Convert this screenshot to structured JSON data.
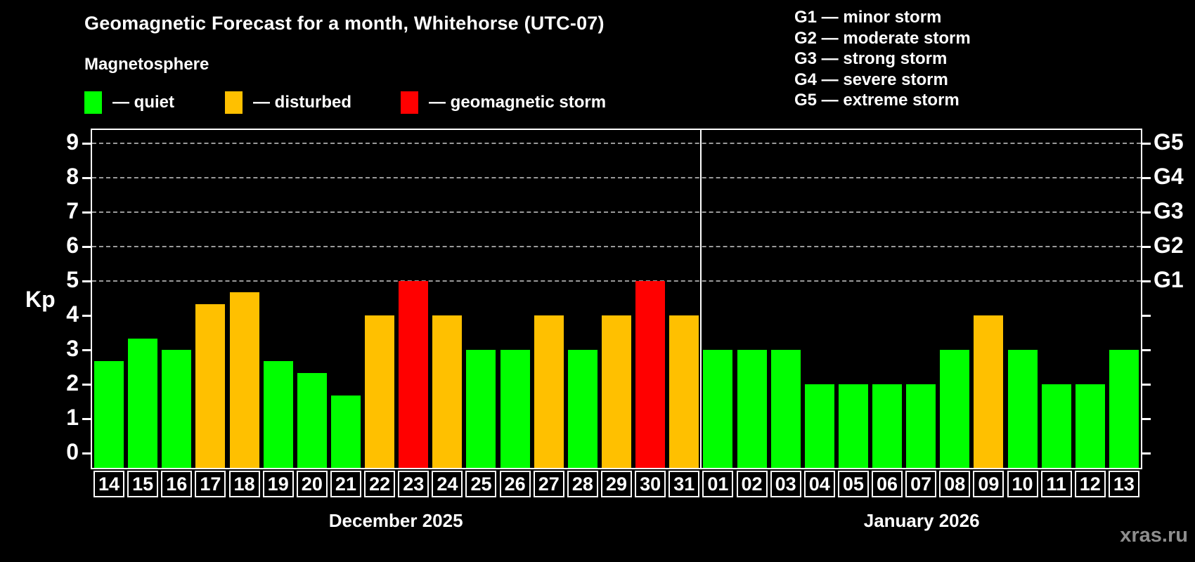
{
  "header": {
    "title": "Geomagnetic Forecast for a month, Whitehorse (UTC-07)",
    "subtitle": "Magnetosphere",
    "legend": [
      {
        "status": "quiet",
        "label": "— quiet"
      },
      {
        "status": "disturbed",
        "label": "— disturbed"
      },
      {
        "status": "storm",
        "label": "— geomagnetic storm"
      }
    ],
    "g_legend": [
      "G1 — minor storm",
      "G2 — moderate storm",
      "G3 — strong storm",
      "G4 — severe storm",
      "G5 — extreme storm"
    ]
  },
  "colors": {
    "quiet": "#00ff00",
    "disturbed": "#ffc000",
    "storm": "#ff0000",
    "grid": "#9a9a9a",
    "axis": "#ffffff",
    "watermark": "#8e8e8e"
  },
  "chart_data": {
    "type": "bar",
    "title": "Geomagnetic Forecast for a month, Whitehorse (UTC-07)",
    "ylabel": "Kp",
    "xlabel": "",
    "ylim": [
      0,
      9
    ],
    "yticks": [
      0,
      1,
      2,
      3,
      4,
      5,
      6,
      7,
      8,
      9
    ],
    "grid_levels": [
      5,
      6,
      7,
      8,
      9
    ],
    "g_labels": [
      {
        "label": "G1",
        "kp": 5
      },
      {
        "label": "G2",
        "kp": 6
      },
      {
        "label": "G3",
        "kp": 7
      },
      {
        "label": "G4",
        "kp": 8
      },
      {
        "label": "G5",
        "kp": 9
      }
    ],
    "categories": [
      "14",
      "15",
      "16",
      "17",
      "18",
      "19",
      "20",
      "21",
      "22",
      "23",
      "24",
      "25",
      "26",
      "27",
      "28",
      "29",
      "30",
      "31",
      "01",
      "02",
      "03",
      "04",
      "05",
      "06",
      "07",
      "08",
      "09",
      "10",
      "11",
      "12",
      "13"
    ],
    "values": [
      2.67,
      3.33,
      3,
      4.33,
      4.67,
      2.67,
      2.33,
      1.67,
      4,
      5,
      4,
      3,
      3,
      4,
      3,
      4,
      5,
      4,
      3,
      3,
      3,
      2,
      2,
      2,
      2,
      3,
      4,
      3,
      2,
      2,
      3
    ],
    "statuses": [
      "quiet",
      "quiet",
      "quiet",
      "disturbed",
      "disturbed",
      "quiet",
      "quiet",
      "quiet",
      "disturbed",
      "storm",
      "disturbed",
      "quiet",
      "quiet",
      "disturbed",
      "quiet",
      "disturbed",
      "storm",
      "disturbed",
      "quiet",
      "quiet",
      "quiet",
      "quiet",
      "quiet",
      "quiet",
      "quiet",
      "quiet",
      "disturbed",
      "quiet",
      "quiet",
      "quiet",
      "quiet"
    ],
    "months": [
      {
        "label": "December 2025",
        "days": 18
      },
      {
        "label": "January 2026",
        "days": 13
      }
    ],
    "legend_position": "top-left",
    "grid": "dashed horizontal at storm levels only"
  },
  "watermark": "xras.ru"
}
